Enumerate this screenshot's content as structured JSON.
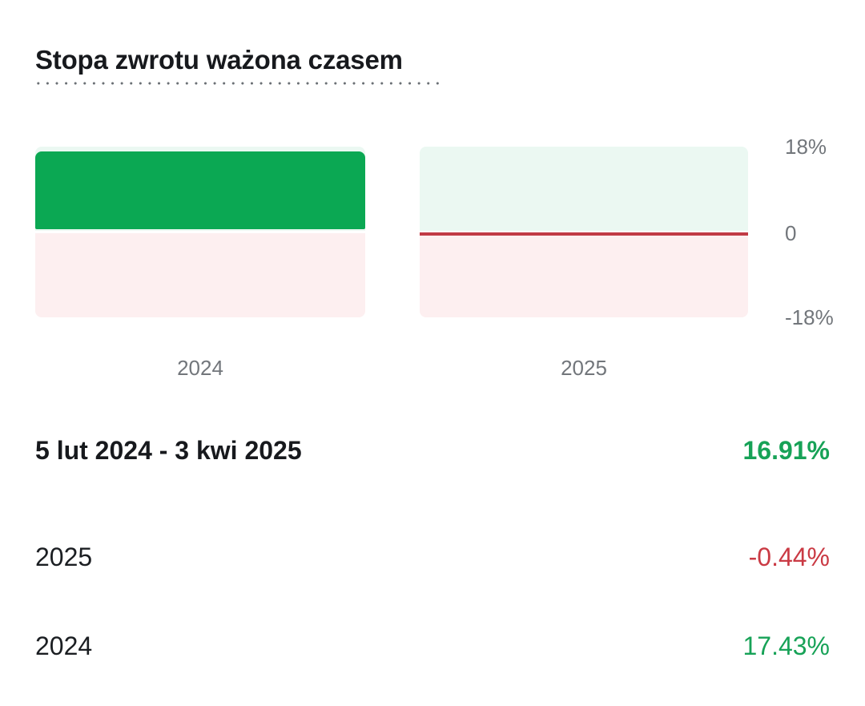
{
  "title": "Stopa zwrotu ważona czasem",
  "chart_data": {
    "type": "bar",
    "title": "Stopa zwrotu ważona czasem",
    "categories": [
      "2024",
      "2025"
    ],
    "values": [
      17.43,
      -0.44
    ],
    "xlabel": "",
    "ylabel": "",
    "ylim": [
      -18,
      18
    ],
    "y_tick_labels": [
      "18%",
      "0",
      "-18%"
    ],
    "grid": false,
    "legend": "none",
    "bar_colors": [
      "#0ba853",
      "#c13a45"
    ],
    "positive_region_bg": "#ebf8f2",
    "negative_region_bg": "#fdeff0"
  },
  "rows": [
    {
      "label": "5 lut 2024 - 3 kwi 2025",
      "value": "16.91%",
      "trend": "positive"
    },
    {
      "label": "2025",
      "value": "-0.44%",
      "trend": "negative"
    },
    {
      "label": "2024",
      "value": "17.43%",
      "trend": "positive"
    }
  ],
  "colors": {
    "positive_bar": "#0ba853",
    "positive_bg": "#ebf8f2",
    "negative_bar": "#c13a45",
    "negative_bg": "#fdeff0",
    "positive_text": "#17a257",
    "negative_text": "#ca3a44",
    "title_text": "#17191d",
    "body_text": "#1b1e22",
    "muted_text": "#72767b"
  }
}
